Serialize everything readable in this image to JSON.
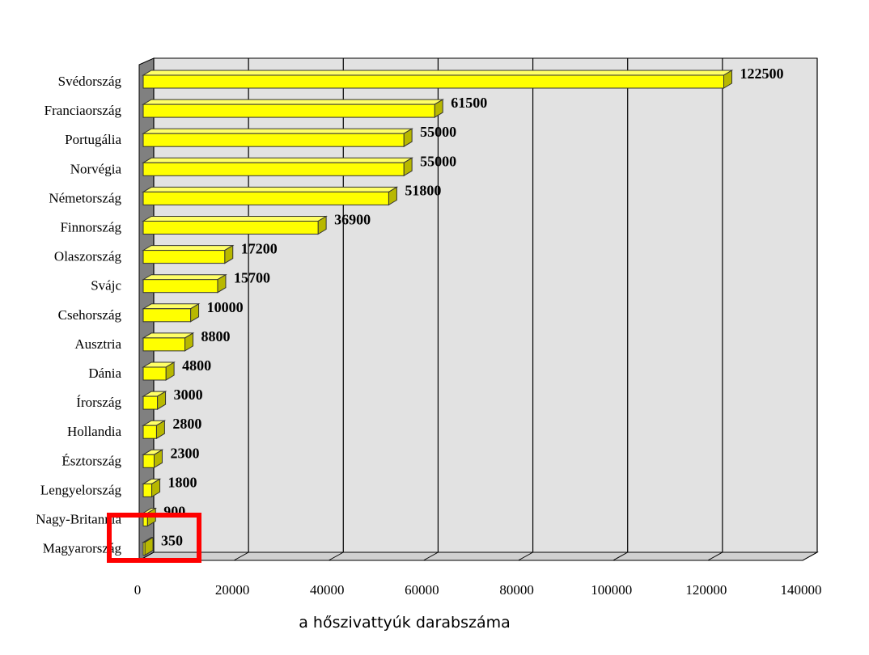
{
  "chart_data": {
    "type": "bar",
    "orientation": "horizontal",
    "categories": [
      "Svédország",
      "Franciaország",
      "Portugália",
      "Norvégia",
      "Németország",
      "Finnország",
      "Olaszország",
      "Svájc",
      "Csehország",
      "Ausztria",
      "Dánia",
      "Írország",
      "Hollandia",
      "Észtország",
      "Lengyelország",
      "Nagy-Britannia",
      "Magyarország"
    ],
    "values": [
      122500,
      61500,
      55000,
      55000,
      51800,
      36900,
      17200,
      15700,
      10000,
      8800,
      4800,
      3000,
      2800,
      2300,
      1800,
      900,
      350
    ],
    "value_labels": [
      "122500",
      "61500",
      "55000",
      "55000",
      "51800",
      "36900",
      "17200",
      "15700",
      "10000",
      "8800",
      "4800",
      "3000",
      "2800",
      "2300",
      "1800",
      "900",
      "350"
    ],
    "xlabel": "a hőszivattyúk darabszáma",
    "ylabel": "",
    "xlim": [
      0,
      140000
    ],
    "x_ticks": [
      0,
      20000,
      40000,
      60000,
      80000,
      100000,
      120000,
      140000
    ],
    "x_tick_labels": [
      "0",
      "20000",
      "40000",
      "60000",
      "80000",
      "100000",
      "120000",
      "140000"
    ],
    "grid": true,
    "style": "3d",
    "colors": {
      "bar_face": "#ffff00",
      "bar_side": "#b8b800",
      "bar_edge": "#333333",
      "plot_back": "#e2e2e2",
      "left_wall": "#808080",
      "grid": "#000000",
      "highlight": "#ff0000"
    },
    "highlight_category": "Magyarország"
  }
}
